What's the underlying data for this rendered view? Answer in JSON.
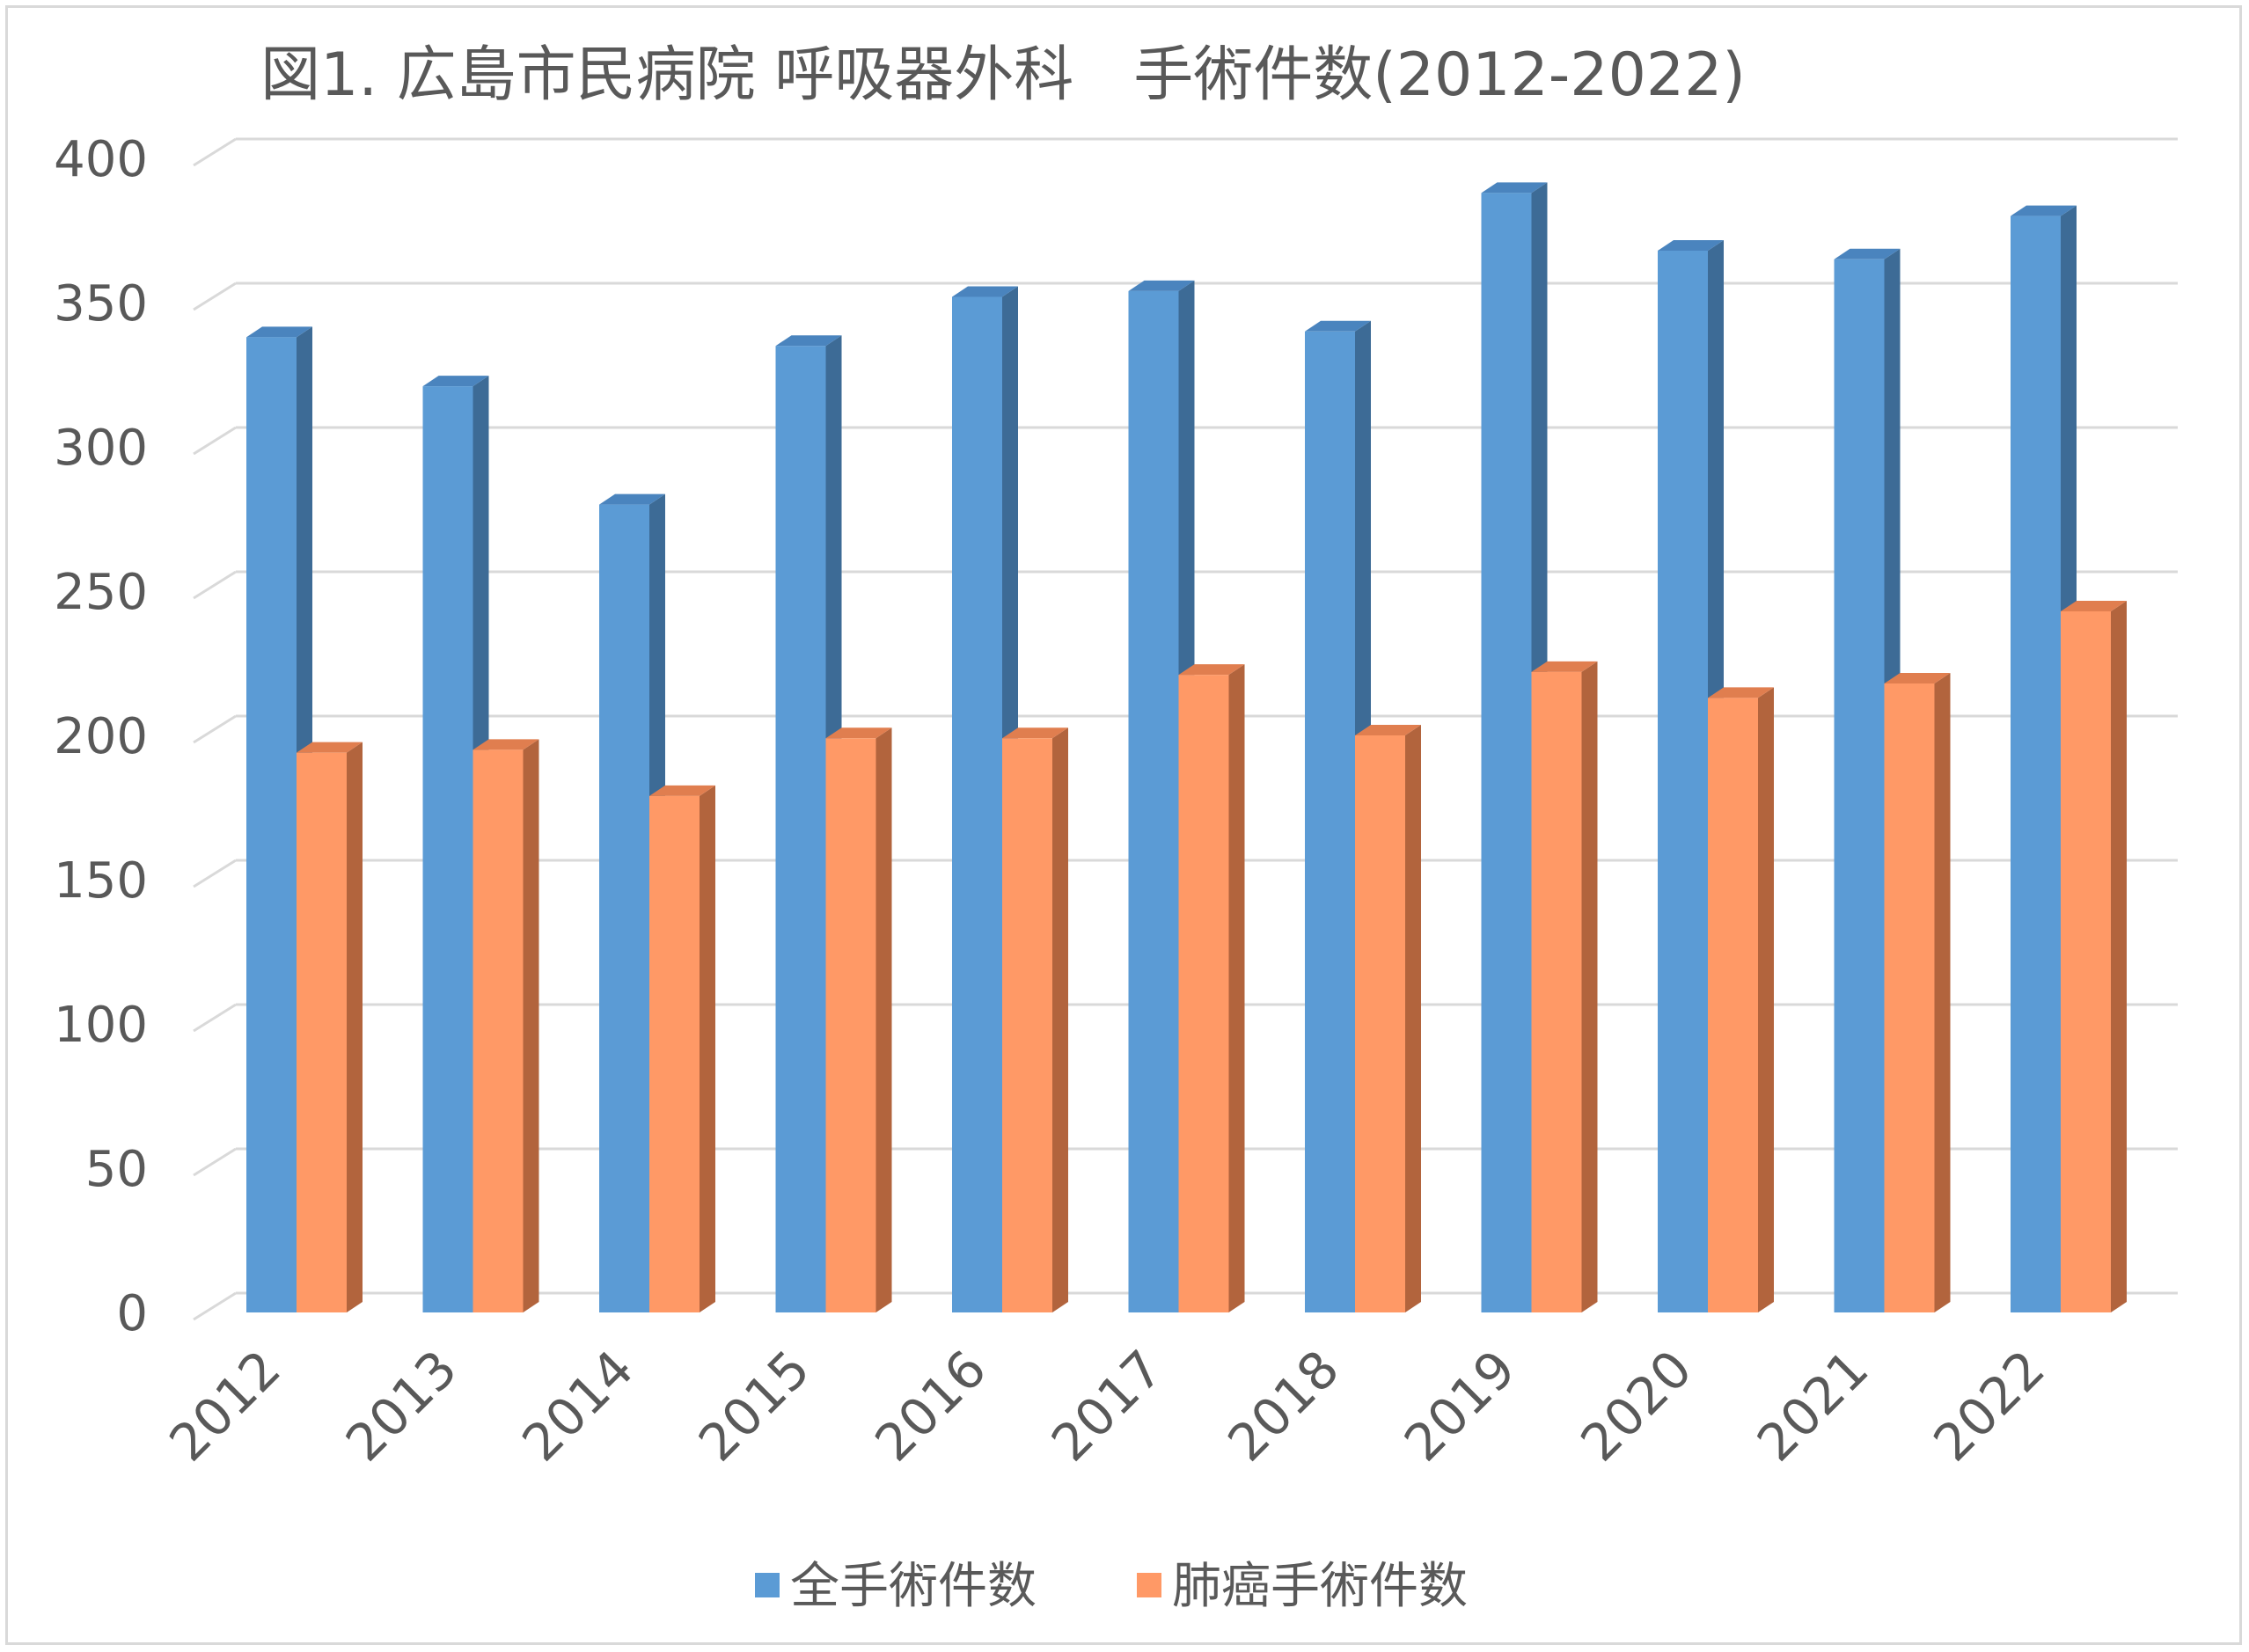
{
  "chart_data": {
    "type": "bar",
    "title": "図1. 広島市民病院 呼吸器外科　手術件数(2012-2022)",
    "xlabel": "",
    "ylabel": "",
    "categories": [
      "2012",
      "2013",
      "2014",
      "2015",
      "2016",
      "2017",
      "2018",
      "2019",
      "2020",
      "2021",
      "2022"
    ],
    "series": [
      {
        "name": "全手術件数",
        "values": [
          338,
          321,
          280,
          335,
          352,
          354,
          340,
          388,
          368,
          365,
          380
        ],
        "color": "#5b9bd5",
        "side_color": "#3d6b96",
        "top_color": "#4a84be"
      },
      {
        "name": "肺癌手術件数",
        "values": [
          194,
          195,
          179,
          199,
          199,
          221,
          200,
          222,
          213,
          218,
          243
        ],
        "color": "#ff9966",
        "side_color": "#b2643d",
        "top_color": "#e07e4f"
      }
    ],
    "ylim": [
      0,
      400
    ],
    "yticks": [
      "0",
      "50",
      "100",
      "150",
      "200",
      "250",
      "300",
      "350",
      "400"
    ],
    "grid": true,
    "legend_position": "bottom",
    "gridline_color": "#d9d9d9"
  }
}
